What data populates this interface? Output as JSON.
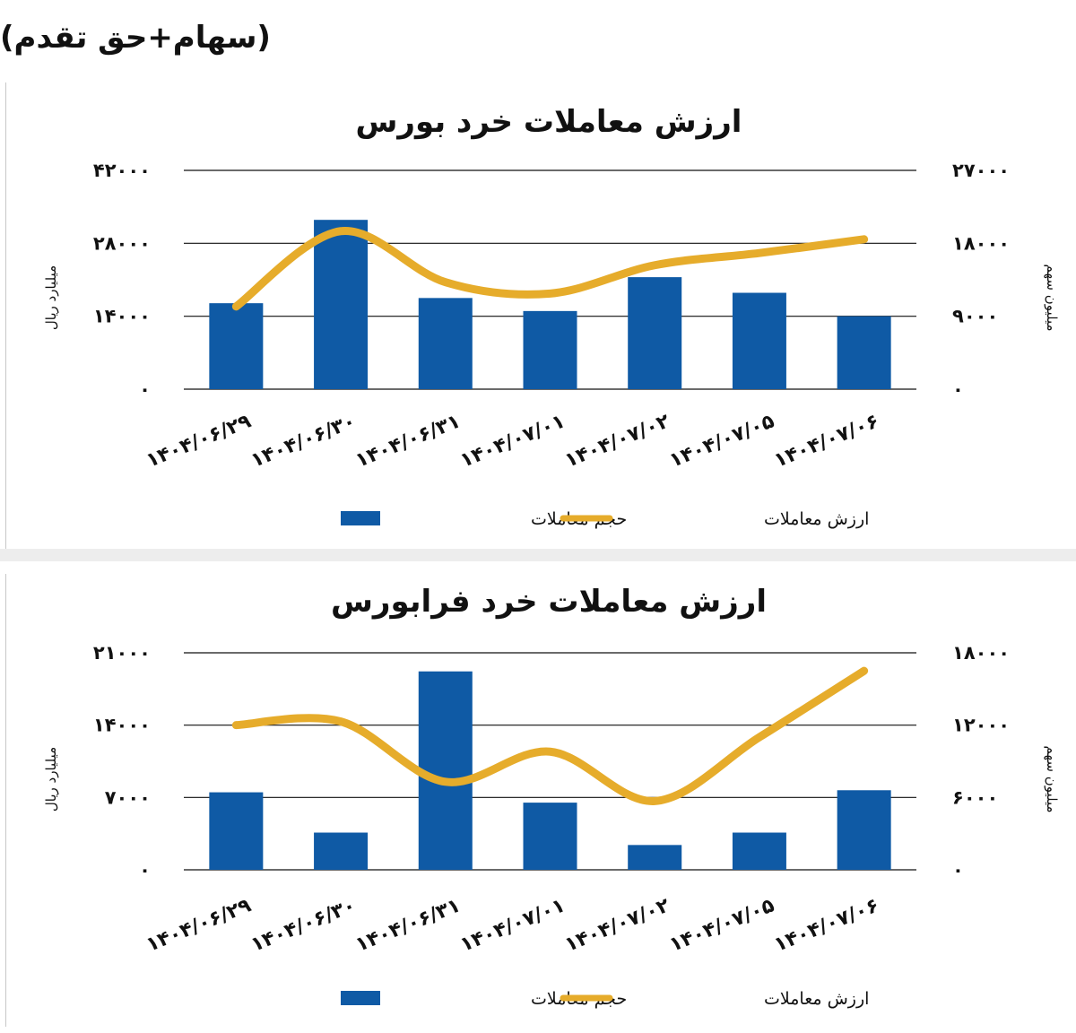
{
  "header": {
    "title": "(سهام+حق تقدم)"
  },
  "colors": {
    "bar": "#0f5aa5",
    "line": "#e6ac2b",
    "grid": "#111111",
    "text": "#111111"
  },
  "chart_data": [
    {
      "type": "bar",
      "title": "ارزش معاملات خرد بورس",
      "categories": [
        "1404/06/29",
        "1404/06/30",
        "1404/06/31",
        "1404/07/01",
        "1404/07/02",
        "1404/07/05",
        "1404/07/06"
      ],
      "category_labels": [
        "۱۴۰۴/۰۶/۲۹",
        "۱۴۰۴/۰۶/۳۰",
        "۱۴۰۴/۰۶/۳۱",
        "۱۴۰۴/۰۷/۰۱",
        "۱۴۰۴/۰۷/۰۲",
        "۱۴۰۴/۰۷/۰۵",
        "۱۴۰۴/۰۷/۰۶"
      ],
      "left_axis": {
        "label": "میلیارد ریال",
        "ylim": [
          0,
          42000
        ],
        "ticks": [
          0,
          14000,
          28000,
          42000
        ],
        "tick_labels": [
          "۰",
          "۱۴۰۰۰",
          "۲۸۰۰۰",
          "۴۲۰۰۰"
        ]
      },
      "right_axis": {
        "label": "میلیون سهم",
        "ylim": [
          0,
          27000
        ],
        "ticks": [
          0,
          9000,
          18000,
          27000
        ],
        "tick_labels": [
          "۰",
          "۹۰۰۰",
          "۱۸۰۰۰",
          "۲۷۰۰۰"
        ]
      },
      "series": [
        {
          "name": "حجم معاملات",
          "kind": "bar",
          "axis": "left",
          "values": [
            16500,
            32500,
            17500,
            15000,
            21500,
            18500,
            14000
          ]
        },
        {
          "name": "ارزش معاملات",
          "kind": "line",
          "axis": "right",
          "values": [
            10200,
            19500,
            13200,
            11800,
            15300,
            16800,
            18500
          ]
        }
      ],
      "grid": true,
      "legend": "bottom-center"
    },
    {
      "type": "bar",
      "title": "ارزش معاملات خرد فرابورس",
      "categories": [
        "1404/06/29",
        "1404/06/30",
        "1404/06/31",
        "1404/07/01",
        "1404/07/02",
        "1404/07/05",
        "1404/07/06"
      ],
      "category_labels": [
        "۱۴۰۴/۰۶/۲۹",
        "۱۴۰۴/۰۶/۳۰",
        "۱۴۰۴/۰۶/۳۱",
        "۱۴۰۴/۰۷/۰۱",
        "۱۴۰۴/۰۷/۰۲",
        "۱۴۰۴/۰۷/۰۵",
        "۱۴۰۴/۰۷/۰۶"
      ],
      "left_axis": {
        "label": "میلیارد ریال",
        "ylim": [
          0,
          21000
        ],
        "ticks": [
          0,
          7000,
          14000,
          21000
        ],
        "tick_labels": [
          "۰",
          "۷۰۰۰",
          "۱۴۰۰۰",
          "۲۱۰۰۰"
        ]
      },
      "right_axis": {
        "label": "میلیون سهم",
        "ylim": [
          0,
          18000
        ],
        "ticks": [
          0,
          6000,
          12000,
          18000
        ],
        "tick_labels": [
          "۰",
          "۶۰۰۰",
          "۱۲۰۰۰",
          "۱۸۰۰۰"
        ]
      },
      "series": [
        {
          "name": "حجم معاملات",
          "kind": "bar",
          "axis": "left",
          "values": [
            7500,
            3600,
            19200,
            6500,
            2400,
            3600,
            7700
          ]
        },
        {
          "name": "ارزش معاملات",
          "kind": "line",
          "axis": "right",
          "values": [
            12000,
            12300,
            7300,
            9800,
            5700,
            11000,
            16500
          ]
        }
      ],
      "grid": true,
      "legend": "bottom-center"
    }
  ]
}
